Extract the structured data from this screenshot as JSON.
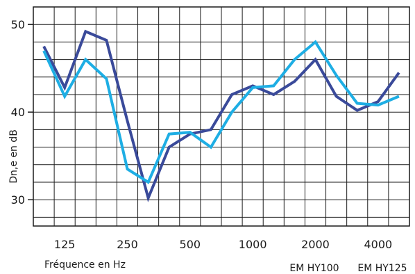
{
  "chart_data": {
    "type": "line",
    "xlabel": "Fréquence en Hz",
    "ylabel": "Dn,e en dB",
    "x": [
      100,
      125,
      160,
      200,
      250,
      315,
      400,
      500,
      630,
      800,
      1000,
      1250,
      1600,
      2000,
      2500,
      3150,
      4000,
      5000
    ],
    "x_tick_labels": [
      "125",
      "250",
      "500",
      "1000",
      "2000",
      "4000"
    ],
    "x_tick_indices": [
      1,
      4,
      7,
      10,
      13,
      16
    ],
    "y_ticks": [
      30,
      40,
      50
    ],
    "ylim": [
      27,
      52
    ],
    "grid": true,
    "legend_position": "bottom-right",
    "series": [
      {
        "name": "EM HY100",
        "color": "#3a4a9a",
        "values": [
          47.5,
          42.8,
          49.2,
          48.2,
          39.0,
          30.2,
          36.0,
          37.5,
          38.0,
          42.0,
          43.0,
          42.0,
          43.5,
          46.0,
          41.8,
          40.2,
          41.2,
          44.5
        ]
      },
      {
        "name": "EM HY125",
        "color": "#1eaee4",
        "values": [
          47.0,
          41.8,
          46.0,
          43.8,
          33.5,
          32.0,
          37.5,
          37.7,
          36.0,
          40.0,
          42.8,
          43.0,
          46.0,
          48.0,
          44.2,
          41.0,
          40.8,
          41.8
        ]
      }
    ]
  }
}
